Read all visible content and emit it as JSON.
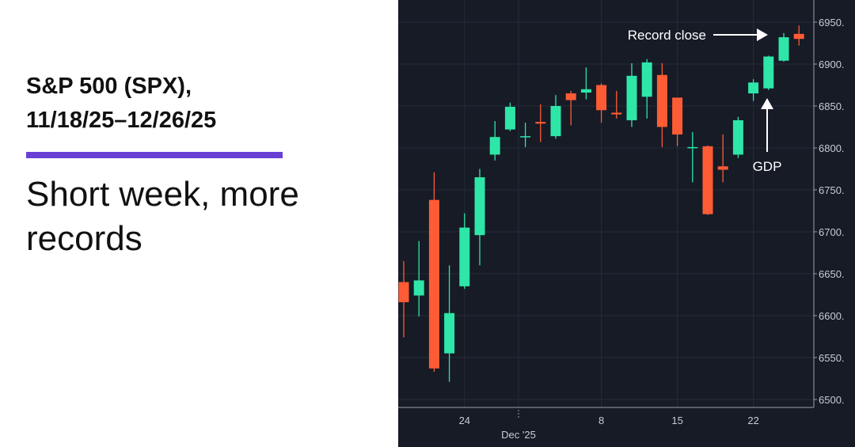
{
  "header": {
    "title": [
      "S&P 500 (SPX),",
      "11/18/25–12/26/25"
    ],
    "subtitle": "Short week, more records"
  },
  "chart_data": {
    "type": "candlestick",
    "categories": [
      null,
      null,
      null,
      null,
      "24",
      null,
      null,
      null,
      null,
      null,
      null,
      null,
      null,
      "8",
      null,
      null,
      null,
      null,
      "15",
      null,
      null,
      null,
      null,
      "22",
      null,
      null,
      null
    ],
    "month_label": "Dec '25",
    "open": [
      6640,
      6624,
      6738,
      6555,
      6635,
      6696,
      6792,
      6822,
      6813,
      6831,
      6814,
      6865,
      6866,
      6875,
      6842,
      6833,
      6861,
      6887,
      6860,
      6800,
      6802,
      6778,
      6792,
      6865,
      6871,
      6904,
      6936
    ],
    "high": [
      6665,
      6689,
      6771,
      6660,
      6722,
      6775,
      6832,
      6854,
      6830,
      6852,
      6863,
      6868,
      6896,
      6877,
      6868,
      6901,
      6906,
      6901,
      6860,
      6819,
      6803,
      6816,
      6837,
      6882,
      6910,
      6937,
      6946
    ],
    "low": [
      6574,
      6599,
      6533,
      6521,
      6632,
      6660,
      6785,
      6820,
      6801,
      6807,
      6811,
      6827,
      6858,
      6830,
      6835,
      6825,
      6835,
      6801,
      6802,
      6759,
      6720,
      6759,
      6788,
      6856,
      6869,
      6903,
      6922
    ],
    "close": [
      6616,
      6642,
      6537,
      6603,
      6705,
      6765,
      6813,
      6849,
      6814,
      6829,
      6850,
      6857,
      6870,
      6845,
      6840,
      6886,
      6902,
      6825,
      6816,
      6801,
      6721,
      6774,
      6833,
      6878,
      6909,
      6932,
      6930
    ],
    "up_color": "#2ee6a8",
    "down_color": "#ff5c35",
    "ylim": [
      6490.5,
      6976.4
    ],
    "yticks": [
      {
        "value": 6500,
        "label": "6500."
      },
      {
        "value": 6550,
        "label": "6550."
      },
      {
        "value": 6600,
        "label": "6600."
      },
      {
        "value": 6650,
        "label": "6650."
      },
      {
        "value": 6700,
        "label": "6700."
      },
      {
        "value": 6750,
        "label": "6750."
      },
      {
        "value": 6800,
        "label": "6800."
      },
      {
        "value": 6850,
        "label": "6850."
      },
      {
        "value": 6900,
        "label": "6900."
      },
      {
        "value": 6950,
        "label": "6950."
      }
    ],
    "grid": true,
    "annotations": [
      "Record close",
      "GDP"
    ]
  }
}
